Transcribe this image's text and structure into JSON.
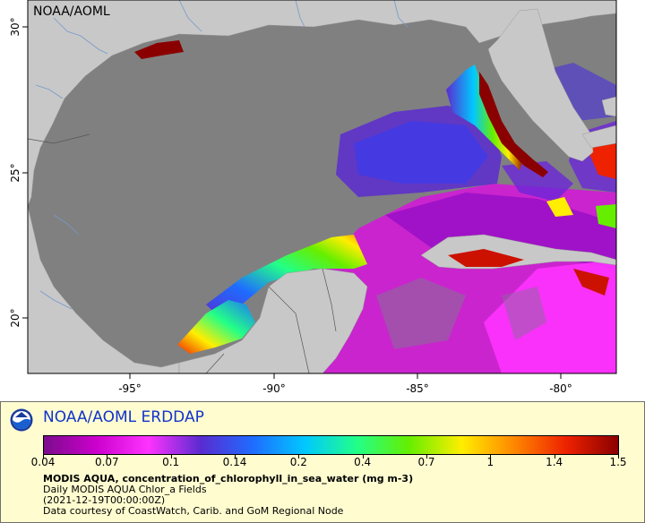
{
  "map": {
    "watermark": "NOAA/AOML",
    "lat_ticks": [
      "30°",
      "25°",
      "20°"
    ],
    "lon_ticks": [
      "-95°",
      "-90°",
      "-85°",
      "-80°"
    ],
    "colors": {
      "ocean_nodata": "#808080",
      "land": "#c8c8c8",
      "boundary": "#555555",
      "rivers": "#7799cc"
    }
  },
  "legend": {
    "brand": "NOAA/AOML ERDDAP",
    "colorbar_ticks": [
      "0.04",
      "0.07",
      "0.1",
      "0.14",
      "0.2",
      "0.4",
      "0.7",
      "1",
      "1.4",
      "1.5"
    ],
    "colorbar_colors": [
      "#7a0c8c",
      "#cc00cc",
      "#ff33ff",
      "#5a2bd0",
      "#1f6cff",
      "#00c8ff",
      "#22ff88",
      "#66ee00",
      "#ffee00",
      "#ff8800",
      "#ee2200",
      "#8a0000"
    ],
    "variable_title": "MODIS AQUA, concentration_of_chlorophyll_in_sea_water (mg m-3)",
    "product": "Daily MODIS AQUA Chlor_a Fields",
    "time": "(2021-12-19T00:00:00Z)",
    "credit": "Data courtesy of CoastWatch, Carib. and GoM Regional Node"
  }
}
